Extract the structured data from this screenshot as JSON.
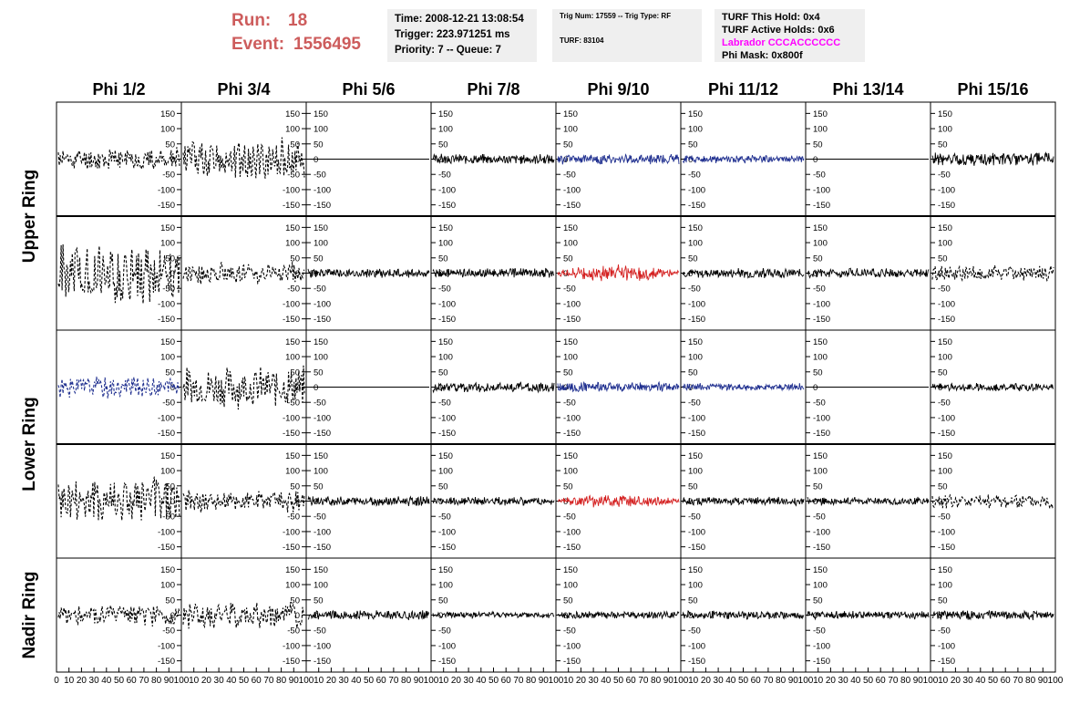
{
  "header": {
    "run_label": "Run:",
    "run_value": "18",
    "event_label": "Event:",
    "event_value": "1556495",
    "time": "Time: 2008-12-21 13:08:54",
    "trigger": "Trigger: 223.971251 ms",
    "priority": "Priority: 7 -- Queue: 7",
    "trig_num": "Trig Num: 17559 -- Trig Type: RF",
    "turf": "TURF: 83104",
    "turf_this_hold": "TURF This Hold: 0x4",
    "turf_active_holds": "TURF Active Holds: 0x6",
    "labrador": "Labrador CCCACCCCCC",
    "phi_mask": "Phi Mask: 0x800f"
  },
  "colors": {
    "run_text": "#cd5c5c",
    "labrador_text": "#ff00ff",
    "black_trace": "#000000",
    "blue_trace": "#1f2f8f",
    "red_trace": "#d42020",
    "info_box": "#efefef"
  },
  "chart_data": {
    "type": "line",
    "columns": [
      "Phi 1/2",
      "Phi 3/4",
      "Phi 5/6",
      "Phi 7/8",
      "Phi 9/10",
      "Phi 11/12",
      "Phi 13/14",
      "Phi 15/16"
    ],
    "rows": [
      "Upper Ring",
      "Lower Ring",
      "Nadir Ring"
    ],
    "ylim": [
      -175,
      175
    ],
    "yticks": [
      -150,
      -100,
      -50,
      0,
      50,
      100,
      150
    ],
    "xlim": [
      0,
      100
    ],
    "xticks": [
      0,
      10,
      20,
      30,
      40,
      50,
      60,
      70,
      80,
      90,
      100
    ],
    "panels": [
      [
        {
          "style": "dashed",
          "color": "black",
          "amplitude": 40,
          "seed": 11
        },
        {
          "style": "dashed",
          "color": "black",
          "amplitude": 75,
          "seed": 12
        },
        {
          "style": "flat",
          "color": "black",
          "amplitude": 0,
          "seed": 13
        },
        {
          "style": "solid",
          "color": "black",
          "amplitude": 18,
          "seed": 14
        },
        {
          "style": "solid",
          "color": "blue",
          "amplitude": 18,
          "seed": 15
        },
        {
          "style": "solid",
          "color": "blue",
          "amplitude": 14,
          "seed": 16
        },
        {
          "style": "flat",
          "color": "black",
          "amplitude": 0,
          "seed": 17
        },
        {
          "style": "solid",
          "color": "black",
          "amplitude": 24,
          "seed": 18
        }
      ],
      [
        {
          "style": "dashed",
          "color": "black",
          "amplitude": 110,
          "seed": 21
        },
        {
          "style": "dashed",
          "color": "black",
          "amplitude": 40,
          "seed": 22
        },
        {
          "style": "solid",
          "color": "black",
          "amplitude": 17,
          "seed": 23
        },
        {
          "style": "solid",
          "color": "black",
          "amplitude": 17,
          "seed": 24
        },
        {
          "style": "solid",
          "color": "red",
          "amplitude": 30,
          "seed": 25
        },
        {
          "style": "solid",
          "color": "black",
          "amplitude": 17,
          "seed": 26
        },
        {
          "style": "solid",
          "color": "black",
          "amplitude": 17,
          "seed": 27
        },
        {
          "style": "dashed",
          "color": "black",
          "amplitude": 30,
          "seed": 28
        }
      ],
      [
        {
          "style": "dashed",
          "color": "blue",
          "amplitude": 40,
          "seed": 31
        },
        {
          "style": "dashed",
          "color": "black",
          "amplitude": 75,
          "seed": 32
        },
        {
          "style": "flat",
          "color": "black",
          "amplitude": 0,
          "seed": 33
        },
        {
          "style": "solid",
          "color": "black",
          "amplitude": 18,
          "seed": 34
        },
        {
          "style": "solid",
          "color": "blue",
          "amplitude": 18,
          "seed": 35
        },
        {
          "style": "solid",
          "color": "blue",
          "amplitude": 13,
          "seed": 36
        },
        {
          "style": "flat",
          "color": "black",
          "amplitude": 0,
          "seed": 37
        },
        {
          "style": "solid",
          "color": "black",
          "amplitude": 14,
          "seed": 38
        }
      ],
      [
        {
          "style": "dashed",
          "color": "black",
          "amplitude": 90,
          "seed": 41
        },
        {
          "style": "dashed",
          "color": "black",
          "amplitude": 40,
          "seed": 42
        },
        {
          "style": "solid",
          "color": "black",
          "amplitude": 17,
          "seed": 43
        },
        {
          "style": "solid",
          "color": "black",
          "amplitude": 15,
          "seed": 44
        },
        {
          "style": "solid",
          "color": "red",
          "amplitude": 25,
          "seed": 45
        },
        {
          "style": "solid",
          "color": "black",
          "amplitude": 15,
          "seed": 46
        },
        {
          "style": "solid",
          "color": "black",
          "amplitude": 14,
          "seed": 47
        },
        {
          "style": "dashed",
          "color": "black",
          "amplitude": 28,
          "seed": 48
        }
      ],
      [
        {
          "style": "dashed",
          "color": "black",
          "amplitude": 40,
          "seed": 51
        },
        {
          "style": "dashed",
          "color": "black",
          "amplitude": 50,
          "seed": 52
        },
        {
          "style": "solid",
          "color": "black",
          "amplitude": 17,
          "seed": 53
        },
        {
          "style": "solid",
          "color": "black",
          "amplitude": 12,
          "seed": 54
        },
        {
          "style": "solid",
          "color": "black",
          "amplitude": 13,
          "seed": 55
        },
        {
          "style": "solid",
          "color": "black",
          "amplitude": 15,
          "seed": 56
        },
        {
          "style": "solid",
          "color": "black",
          "amplitude": 14,
          "seed": 57
        },
        {
          "style": "solid",
          "color": "black",
          "amplitude": 17,
          "seed": 58
        }
      ]
    ]
  }
}
